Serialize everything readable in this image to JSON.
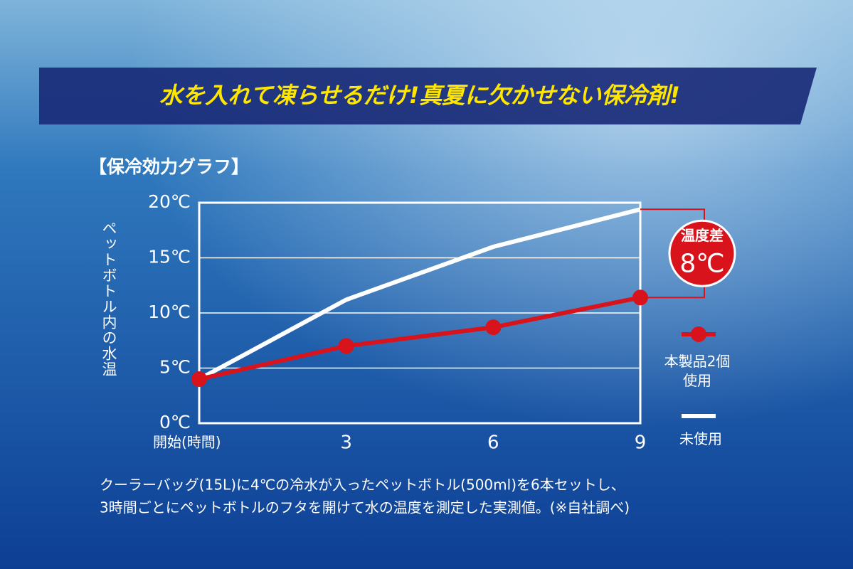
{
  "banner": "水を入れて凍らせるだけ!真夏に欠かせない保冷剤!",
  "chart_data": {
    "type": "line",
    "title": "【保冷効力グラフ】",
    "y_label": "ペットボトル内の水温",
    "x": [
      0,
      3,
      6,
      9
    ],
    "xlim": [
      0,
      9
    ],
    "xticks": [
      {
        "value": 0,
        "label": "開始(時間)"
      },
      3,
      6,
      9
    ],
    "ylim": [
      0,
      20
    ],
    "yticks": [
      {
        "value": 0,
        "label": "0℃"
      },
      {
        "value": 5,
        "label": "5℃"
      },
      {
        "value": 10,
        "label": "10℃"
      },
      {
        "value": 15,
        "label": "15℃"
      },
      {
        "value": 20,
        "label": "20℃"
      }
    ],
    "grid": true,
    "legend": "right",
    "series": [
      {
        "name": "本製品2個使用",
        "color": "#d8131c",
        "markers": true,
        "values": [
          4.0,
          7.0,
          8.7,
          11.4
        ]
      },
      {
        "name": "未使用",
        "color": "#ffffff",
        "markers": false,
        "values": [
          4.0,
          11.2,
          16.0,
          19.4
        ]
      }
    ],
    "annotation": {
      "label": "温度差",
      "value_label": "8℃"
    }
  },
  "note": [
    "クーラーバッグ(15L)に4℃の冷水が入ったペットボトル(500ml)を6本セットし、",
    "3時間ごとにペットボトルのフタを開けて水の温度を測定した実測値。(※自社調べ)"
  ]
}
